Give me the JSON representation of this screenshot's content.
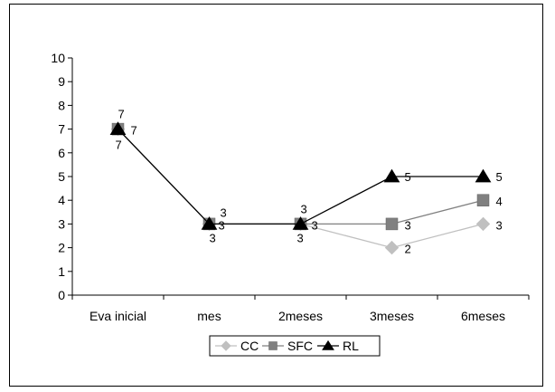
{
  "chart_data": {
    "type": "line",
    "categories": [
      "Eva inicial",
      "mes",
      "2meses",
      "3meses",
      "6meses"
    ],
    "ylim": [
      0,
      10
    ],
    "yticks": [
      0,
      1,
      2,
      3,
      4,
      5,
      6,
      7,
      8,
      9,
      10
    ],
    "grid": false,
    "legend_position": "bottom",
    "series": [
      {
        "name": "CC",
        "values": [
          7,
          3,
          3,
          2,
          3
        ],
        "color": "#c0c0c0",
        "marker": "diamond"
      },
      {
        "name": "SFC",
        "values": [
          7,
          3,
          3,
          3,
          4
        ],
        "color": "#808080",
        "marker": "square"
      },
      {
        "name": "RL",
        "values": [
          7,
          3,
          3,
          5,
          5
        ],
        "color": "#000000",
        "marker": "triangle"
      }
    ]
  }
}
